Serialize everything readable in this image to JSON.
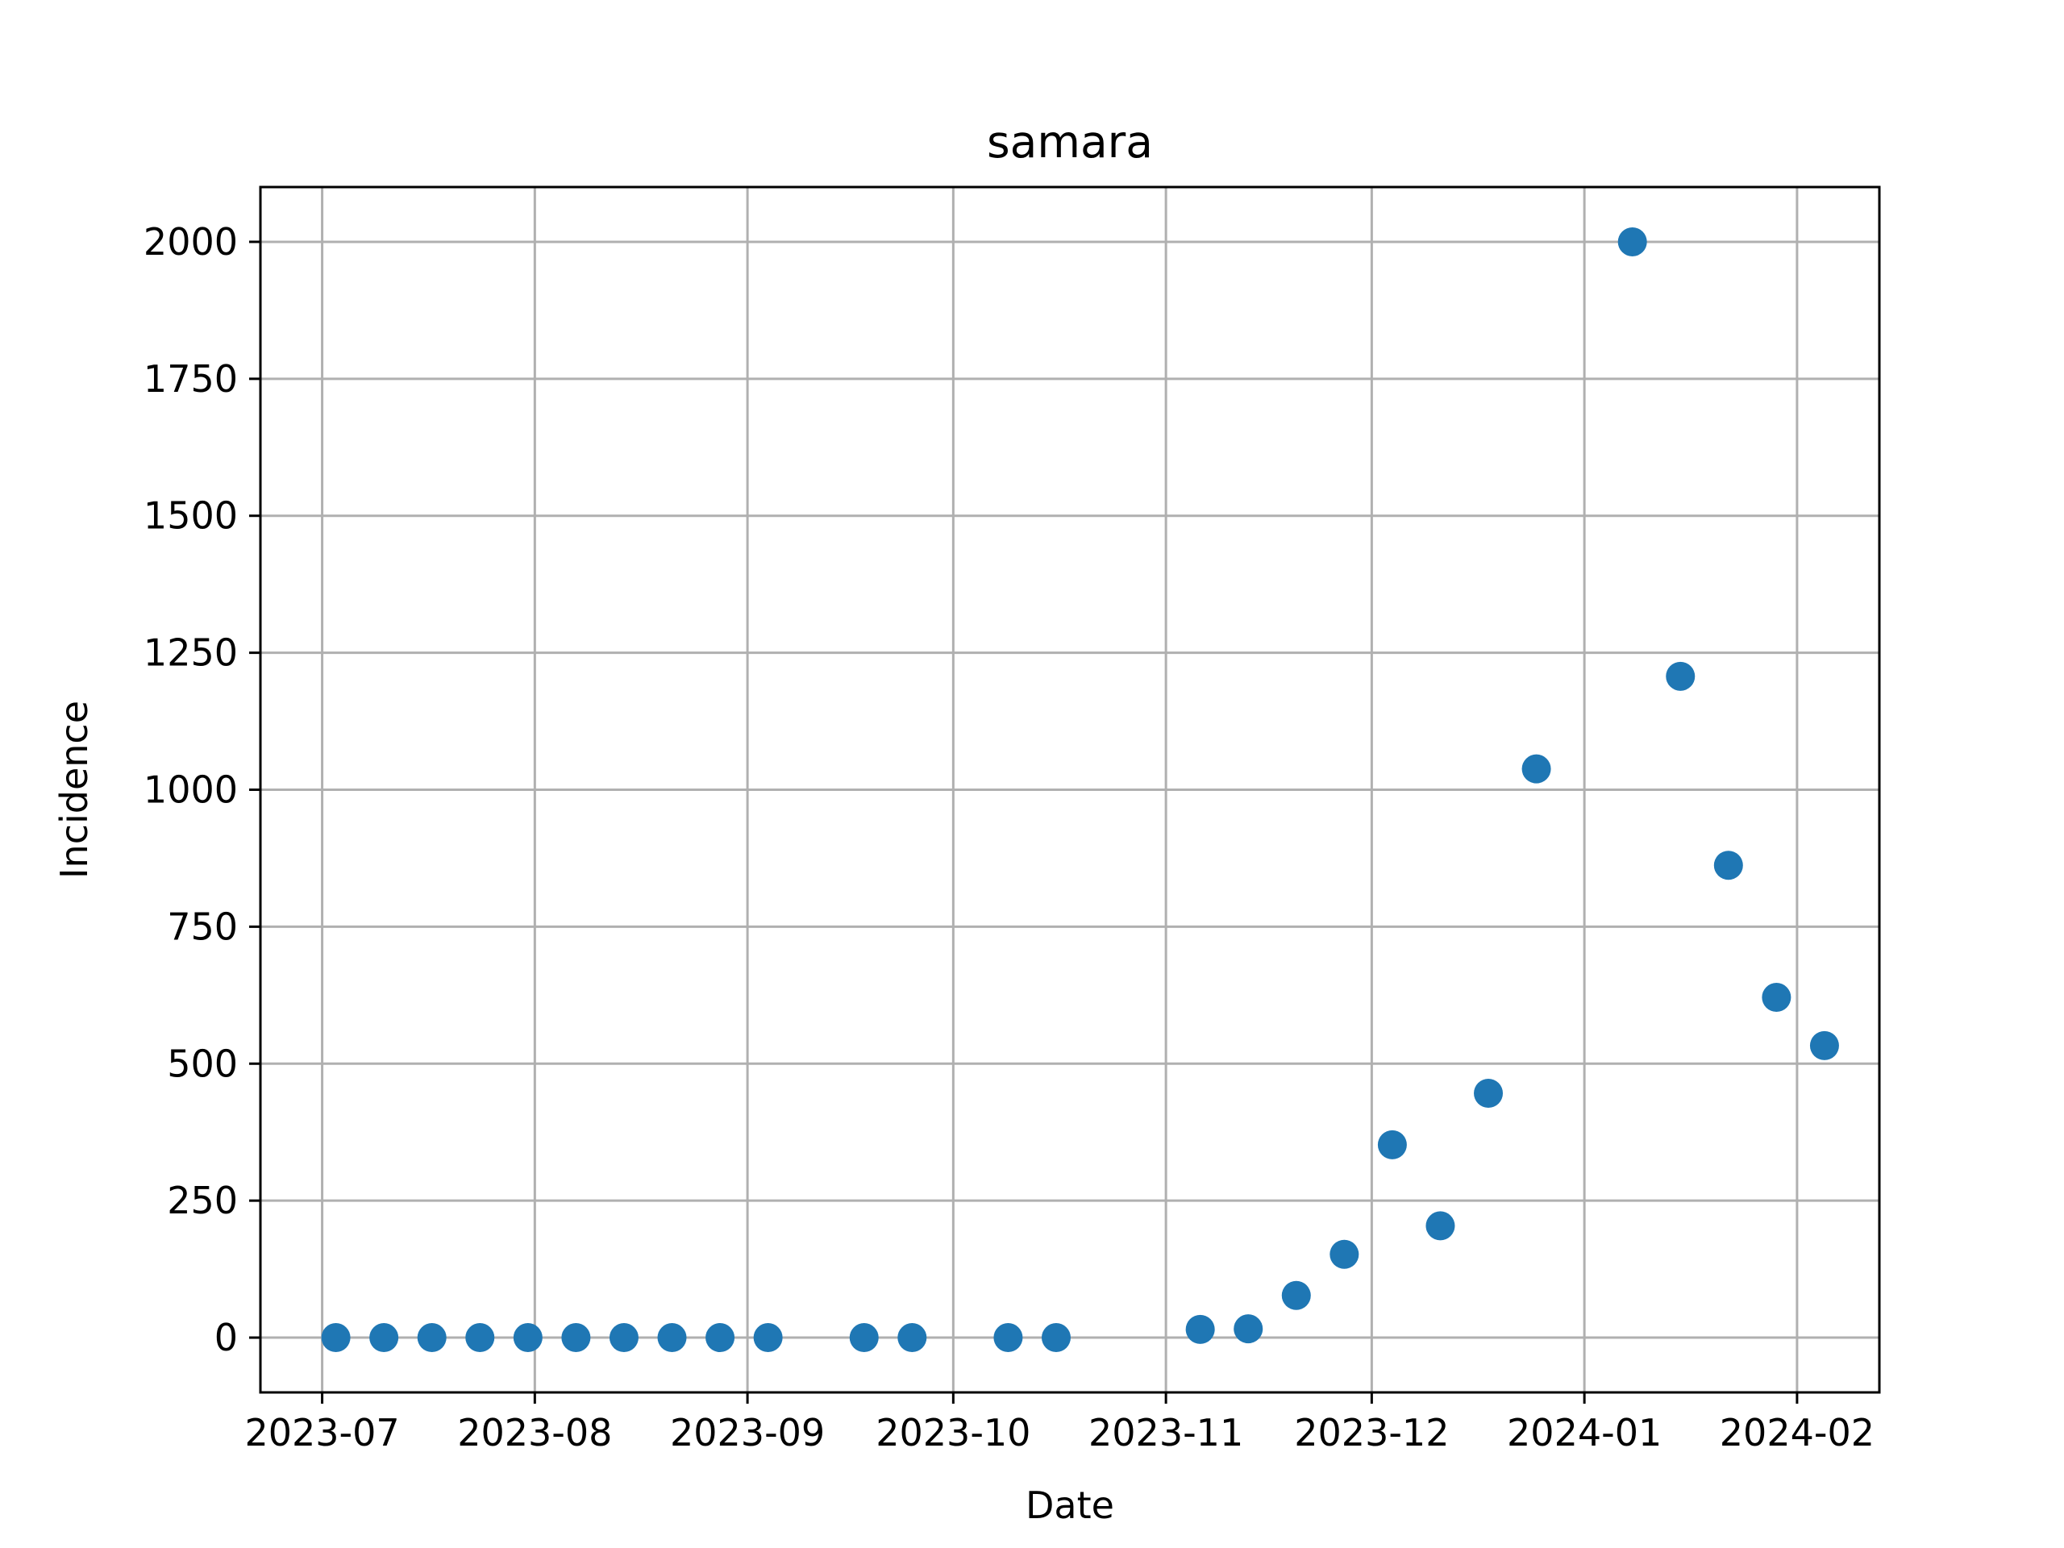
{
  "chart_data": {
    "type": "scatter",
    "title": "samara",
    "xlabel": "Date",
    "ylabel": "Incidence",
    "grid": true,
    "marker_color": "#1f77b4",
    "xlim": [
      "2023-06-22",
      "2024-02-13"
    ],
    "ylim": [
      -100,
      2100
    ],
    "x_ticks": [
      {
        "date": "2023-07-01",
        "label": "2023-07"
      },
      {
        "date": "2023-08-01",
        "label": "2023-08"
      },
      {
        "date": "2023-09-01",
        "label": "2023-09"
      },
      {
        "date": "2023-10-01",
        "label": "2023-10"
      },
      {
        "date": "2023-11-01",
        "label": "2023-11"
      },
      {
        "date": "2023-12-01",
        "label": "2023-12"
      },
      {
        "date": "2024-01-01",
        "label": "2024-01"
      },
      {
        "date": "2024-02-01",
        "label": "2024-02"
      }
    ],
    "y_ticks": [
      {
        "value": 0,
        "label": "0"
      },
      {
        "value": 250,
        "label": "250"
      },
      {
        "value": 500,
        "label": "500"
      },
      {
        "value": 750,
        "label": "750"
      },
      {
        "value": 1000,
        "label": "1000"
      },
      {
        "value": 1250,
        "label": "1250"
      },
      {
        "value": 1500,
        "label": "1500"
      },
      {
        "value": 1750,
        "label": "1750"
      },
      {
        "value": 2000,
        "label": "2000"
      }
    ],
    "points": [
      {
        "x": "2023-07-03",
        "y": 0
      },
      {
        "x": "2023-07-10",
        "y": 0
      },
      {
        "x": "2023-07-17",
        "y": 0
      },
      {
        "x": "2023-07-24",
        "y": 0
      },
      {
        "x": "2023-07-31",
        "y": 0
      },
      {
        "x": "2023-08-07",
        "y": 0
      },
      {
        "x": "2023-08-14",
        "y": 0
      },
      {
        "x": "2023-08-21",
        "y": 0
      },
      {
        "x": "2023-08-28",
        "y": 0
      },
      {
        "x": "2023-09-04",
        "y": 0
      },
      {
        "x": "2023-09-18",
        "y": 0
      },
      {
        "x": "2023-09-25",
        "y": 0
      },
      {
        "x": "2023-10-09",
        "y": 0
      },
      {
        "x": "2023-10-16",
        "y": 0
      },
      {
        "x": "2023-11-06",
        "y": 15
      },
      {
        "x": "2023-11-13",
        "y": 16
      },
      {
        "x": "2023-11-20",
        "y": 77
      },
      {
        "x": "2023-11-27",
        "y": 152
      },
      {
        "x": "2023-12-04",
        "y": 352
      },
      {
        "x": "2023-12-11",
        "y": 204
      },
      {
        "x": "2023-12-18",
        "y": 446
      },
      {
        "x": "2023-12-25",
        "y": 1038
      },
      {
        "x": "2024-01-08",
        "y": 2000
      },
      {
        "x": "2024-01-15",
        "y": 1207
      },
      {
        "x": "2024-01-22",
        "y": 862
      },
      {
        "x": "2024-01-29",
        "y": 621
      },
      {
        "x": "2024-02-05",
        "y": 533
      }
    ]
  }
}
